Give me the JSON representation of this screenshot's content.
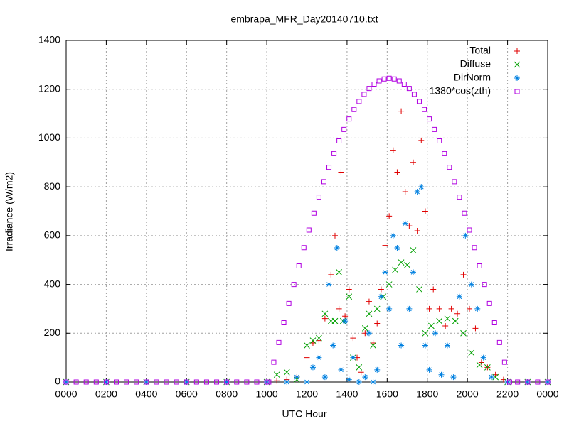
{
  "chart_data": {
    "type": "scatter",
    "title": "embrapa_MFR_Day20140710.txt",
    "x_label": "UTC Hour",
    "y_label": "Irradiance (W/m2)",
    "xlim": [
      0,
      24
    ],
    "ylim": [
      0,
      1400
    ],
    "xticks": [
      {
        "value": 0,
        "label": "0000"
      },
      {
        "value": 2,
        "label": "0200"
      },
      {
        "value": 4,
        "label": "0400"
      },
      {
        "value": 6,
        "label": "0600"
      },
      {
        "value": 8,
        "label": "0800"
      },
      {
        "value": 10,
        "label": "1000"
      },
      {
        "value": 12,
        "label": "1200"
      },
      {
        "value": 14,
        "label": "1400"
      },
      {
        "value": 16,
        "label": "1600"
      },
      {
        "value": 18,
        "label": "1800"
      },
      {
        "value": 20,
        "label": "2000"
      },
      {
        "value": 22,
        "label": "2200"
      },
      {
        "value": 24,
        "label": "0000"
      }
    ],
    "yticks": [
      0,
      200,
      400,
      600,
      800,
      1000,
      1200,
      1400
    ],
    "grid": true,
    "legend_position": "top-right",
    "series": [
      {
        "name": "Total",
        "color": "#e00000",
        "marker": "plus",
        "x": [
          0,
          2,
          4,
          6,
          8,
          10,
          10.5,
          11,
          11.5,
          12,
          12.3,
          12.6,
          12.9,
          13.2,
          13.4,
          13.6,
          13.7,
          13.9,
          14.1,
          14.3,
          14.5,
          14.7,
          14.9,
          15.1,
          15.3,
          15.5,
          15.7,
          15.9,
          16.1,
          16.3,
          16.5,
          16.7,
          16.9,
          17.1,
          17.3,
          17.5,
          17.7,
          17.9,
          18.1,
          18.3,
          18.6,
          18.9,
          19.2,
          19.5,
          19.8,
          20.1,
          20.4,
          20.7,
          21.0,
          21.4,
          21.8,
          22,
          23,
          24
        ],
        "values": [
          0,
          0,
          0,
          0,
          0,
          0,
          5,
          10,
          20,
          100,
          160,
          170,
          260,
          440,
          600,
          300,
          860,
          270,
          380,
          180,
          100,
          40,
          200,
          330,
          160,
          240,
          380,
          560,
          680,
          950,
          860,
          1110,
          780,
          640,
          900,
          620,
          990,
          700,
          300,
          380,
          300,
          230,
          300,
          280,
          440,
          300,
          220,
          80,
          60,
          30,
          10,
          0,
          0,
          0
        ]
      },
      {
        "name": "Diffuse",
        "color": "#00a000",
        "marker": "cross",
        "x": [
          0,
          2,
          4,
          6,
          8,
          10,
          10.5,
          11,
          11.5,
          12,
          12.3,
          12.6,
          12.9,
          13.2,
          13.4,
          13.6,
          13.8,
          14.1,
          14.3,
          14.6,
          14.9,
          15.1,
          15.3,
          15.5,
          15.8,
          16.1,
          16.4,
          16.7,
          17,
          17.3,
          17.6,
          17.9,
          18.2,
          18.6,
          19,
          19.4,
          19.8,
          20.2,
          20.6,
          21,
          21.4,
          22,
          23,
          24
        ],
        "values": [
          0,
          0,
          0,
          0,
          0,
          0,
          30,
          40,
          10,
          150,
          170,
          180,
          280,
          250,
          250,
          450,
          250,
          350,
          100,
          60,
          220,
          280,
          150,
          300,
          350,
          400,
          460,
          490,
          480,
          540,
          380,
          200,
          230,
          250,
          260,
          250,
          200,
          120,
          70,
          60,
          20,
          0,
          0,
          0
        ]
      },
      {
        "name": "DirNorm",
        "color": "#0080e0",
        "marker": "star",
        "x": [
          0,
          2,
          4,
          6,
          8,
          10,
          11,
          11.5,
          12,
          12.3,
          12.6,
          12.9,
          13.1,
          13.3,
          13.5,
          13.7,
          13.9,
          14.1,
          14.3,
          14.6,
          14.9,
          15.1,
          15.3,
          15.5,
          15.7,
          15.9,
          16.1,
          16.3,
          16.5,
          16.7,
          16.9,
          17.1,
          17.3,
          17.5,
          17.7,
          17.9,
          18.1,
          18.4,
          18.7,
          19.0,
          19.3,
          19.6,
          19.9,
          20.2,
          20.5,
          20.8,
          21.2,
          22,
          23,
          24
        ],
        "values": [
          0,
          0,
          0,
          0,
          0,
          0,
          0,
          20,
          0,
          60,
          100,
          20,
          400,
          150,
          550,
          50,
          250,
          10,
          100,
          0,
          20,
          200,
          0,
          50,
          350,
          450,
          300,
          600,
          550,
          150,
          650,
          300,
          450,
          780,
          800,
          150,
          50,
          200,
          30,
          150,
          20,
          350,
          600,
          400,
          300,
          100,
          20,
          0,
          0,
          0
        ]
      },
      {
        "name": "1380*cos(zth)",
        "color": "#b000e0",
        "marker": "square",
        "x": [
          0,
          0.5,
          1,
          1.5,
          2,
          2.5,
          3,
          3.5,
          4,
          4.5,
          5,
          5.5,
          6,
          6.5,
          7,
          7.5,
          8,
          8.5,
          9,
          9.5,
          10,
          10.1,
          10.35,
          10.6,
          10.85,
          11.1,
          11.35,
          11.6,
          11.85,
          12.1,
          12.35,
          12.6,
          12.85,
          13.1,
          13.35,
          13.6,
          13.85,
          14.1,
          14.35,
          14.6,
          14.85,
          15.1,
          15.35,
          15.6,
          15.85,
          16.1,
          16.35,
          16.6,
          16.85,
          17.1,
          17.35,
          17.6,
          17.85,
          18.1,
          18.35,
          18.6,
          18.85,
          19.1,
          19.35,
          19.6,
          19.85,
          20.1,
          20.35,
          20.6,
          20.85,
          21.1,
          21.35,
          21.6,
          21.85,
          22.1,
          22.5,
          23,
          23.5,
          24
        ],
        "values": [
          0,
          0,
          0,
          0,
          0,
          0,
          0,
          0,
          0,
          0,
          0,
          0,
          0,
          0,
          0,
          0,
          0,
          0,
          0,
          0,
          0,
          0,
          81,
          162,
          243,
          322,
          400,
          476,
          551,
          623,
          692,
          758,
          821,
          880,
          936,
          988,
          1035,
          1078,
          1117,
          1150,
          1179,
          1203,
          1221,
          1234,
          1242,
          1245,
          1242,
          1234,
          1221,
          1203,
          1179,
          1150,
          1117,
          1078,
          1035,
          988,
          936,
          880,
          821,
          758,
          692,
          623,
          551,
          476,
          400,
          322,
          243,
          162,
          81,
          0,
          0,
          0,
          0,
          0
        ]
      }
    ]
  }
}
